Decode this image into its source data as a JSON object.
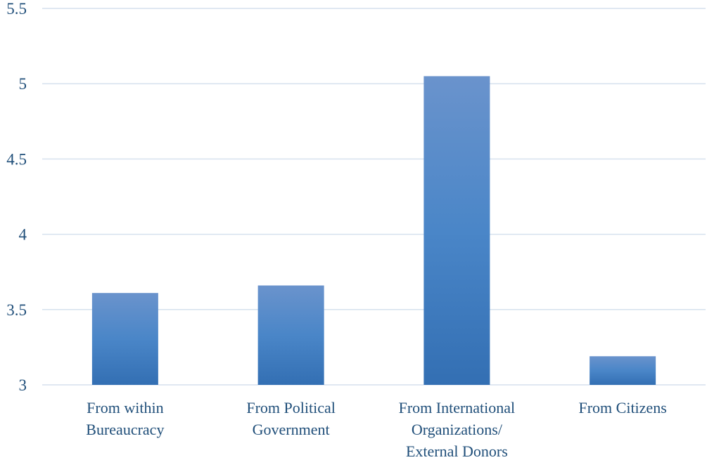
{
  "chart_data": {
    "type": "bar",
    "title": "",
    "xlabel": "",
    "ylabel": "",
    "categories": [
      [
        "From within",
        "Bureaucracy"
      ],
      [
        "From Political",
        "Government"
      ],
      [
        "From International",
        "Organizations/",
        "External Donors"
      ],
      [
        "From Citizens"
      ]
    ],
    "values": [
      3.61,
      3.66,
      5.05,
      3.19
    ],
    "ylim": [
      3,
      5.5
    ],
    "yticks": [
      "3",
      "3.5",
      "4",
      "4.5",
      "5",
      "5.5"
    ],
    "grid": true,
    "legend": "none",
    "colors": {
      "bar_top": "#6a93cc",
      "bar_mid": "#4a86c8",
      "bar_bottom": "#336fb3",
      "grid": "#d6e1ee",
      "text": "#1f4e79"
    }
  }
}
